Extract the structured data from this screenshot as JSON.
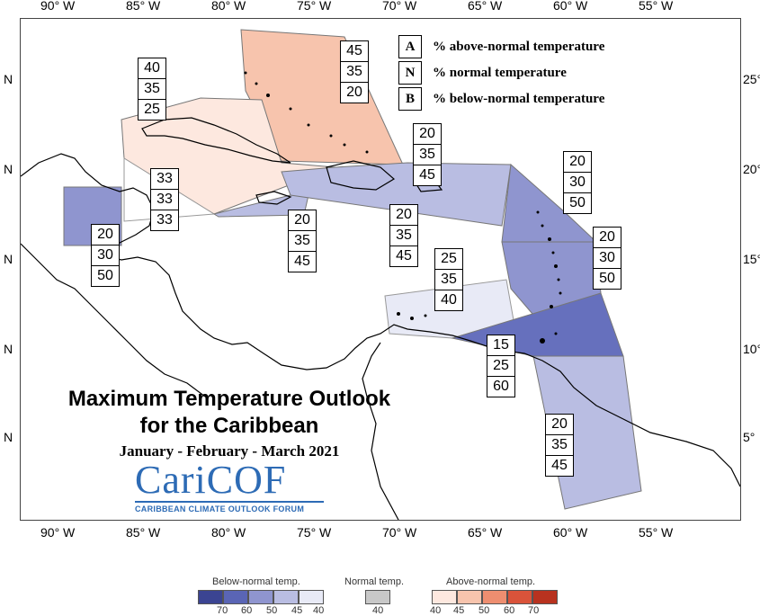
{
  "axes": {
    "longitudes": [
      "90° W",
      "85° W",
      "80° W",
      "75° W",
      "70° W",
      "65° W",
      "60° W",
      "55° W"
    ],
    "lat_left": [
      "N",
      "N",
      "N",
      "N",
      "N"
    ],
    "lat_right": [
      "25°",
      "20°",
      "15°",
      "10°",
      "5°"
    ]
  },
  "legend_key": [
    {
      "letter": "A",
      "text": "% above-normal temperature"
    },
    {
      "letter": "N",
      "text": "% normal temperature"
    },
    {
      "letter": "B",
      "text": "% below-normal temperature"
    }
  ],
  "title": {
    "line1": "Maximum Temperature Outlook",
    "line2": "for the Caribbean",
    "period": "January - February - March 2021"
  },
  "logo": {
    "main": "CariCOF",
    "sub": "CARIBBEAN CLIMATE OUTLOOK FORUM"
  },
  "regions": [
    {
      "id": "bahamas",
      "A": "45",
      "N": "35",
      "B": "20",
      "color": "#f7c4ad"
    },
    {
      "id": "cuba",
      "A": "40",
      "N": "35",
      "B": "25",
      "color": "#fde8df"
    },
    {
      "id": "cayman",
      "A": "33",
      "N": "33",
      "B": "33",
      "color": "#ffffff"
    },
    {
      "id": "belize",
      "A": "20",
      "N": "30",
      "B": "50",
      "color": "#8f95cf"
    },
    {
      "id": "jamaica",
      "A": "20",
      "N": "35",
      "B": "45",
      "color": "#b9bde2"
    },
    {
      "id": "hispaniola",
      "A": "20",
      "N": "35",
      "B": "45",
      "color": "#b9bde2"
    },
    {
      "id": "puerto-rico-n",
      "A": "20",
      "N": "35",
      "B": "45",
      "color": "#b9bde2"
    },
    {
      "id": "leeward",
      "A": "20",
      "N": "30",
      "B": "50",
      "color": "#8f95cf"
    },
    {
      "id": "windward",
      "A": "20",
      "N": "30",
      "B": "50",
      "color": "#8f95cf"
    },
    {
      "id": "abc",
      "A": "25",
      "N": "35",
      "B": "40",
      "color": "#e8eaf6"
    },
    {
      "id": "trinidad",
      "A": "15",
      "N": "25",
      "B": "60",
      "color": "#6670bd"
    },
    {
      "id": "guianas",
      "A": "20",
      "N": "35",
      "B": "45",
      "color": "#b9bde2"
    }
  ],
  "colorbar": {
    "below_title": "Below-normal temp.",
    "normal_title": "Normal temp.",
    "above_title": "Above-normal temp.",
    "below_ticks": [
      "70",
      "60",
      "50",
      "45",
      "40"
    ],
    "normal_ticks": [
      "40"
    ],
    "above_ticks": [
      "40",
      "45",
      "50",
      "60",
      "70"
    ],
    "below_colors": [
      "#3b4492",
      "#5a65b5",
      "#8f95cf",
      "#b9bde2",
      "#e8eaf6"
    ],
    "normal_colors": [
      "#c8c8c8"
    ],
    "above_colors": [
      "#fde8df",
      "#f7c4ad",
      "#ee8e70",
      "#d9533a",
      "#b8321f"
    ]
  }
}
